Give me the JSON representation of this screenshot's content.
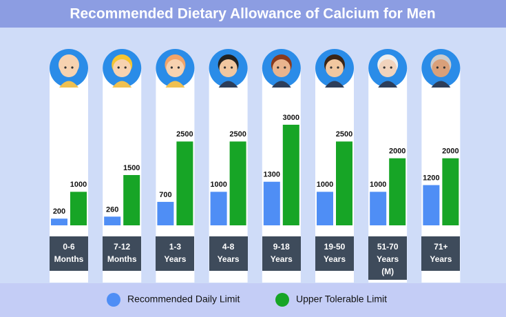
{
  "chart_data": {
    "type": "bar",
    "title": "Recommended Dietary Allowance of Calcium for Men",
    "categories": [
      "0-6\nMonths",
      "7-12\nMonths",
      "1-3\nYears",
      "4-8\nYears",
      "9-18\nYears",
      "19-50\nYears",
      "51-70\nYears\n(M)",
      "71+\nYears"
    ],
    "series": [
      {
        "name": "Recommended Daily Limit",
        "color": "#4f8ef5",
        "values": [
          200,
          260,
          700,
          1000,
          1300,
          1000,
          1000,
          1200
        ]
      },
      {
        "name": "Upper Tolerable Limit",
        "color": "#17a526",
        "values": [
          1000,
          1500,
          2500,
          2500,
          3000,
          2500,
          2000,
          2000
        ]
      }
    ]
  }
}
